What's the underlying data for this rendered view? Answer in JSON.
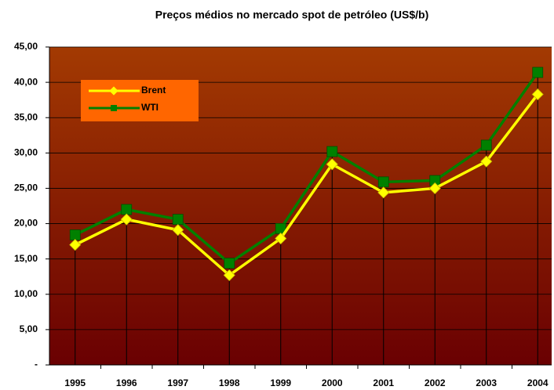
{
  "chart_data": {
    "type": "line",
    "title": "Preços médios no mercado spot de petróleo (US$/b)",
    "categories": [
      "1995",
      "1996",
      "1997",
      "1998",
      "1999",
      "2000",
      "2001",
      "2002",
      "2003",
      "2004"
    ],
    "series": [
      {
        "name": "Brent",
        "color": "#ffff00",
        "marker": "diamond",
        "values": [
          17.0,
          20.6,
          19.1,
          12.7,
          17.9,
          28.4,
          24.4,
          25.0,
          28.8,
          38.3
        ]
      },
      {
        "name": "WTI",
        "color": "#008000",
        "marker": "square",
        "values": [
          18.4,
          22.0,
          20.6,
          14.4,
          19.3,
          30.2,
          25.9,
          26.1,
          31.1,
          41.4
        ]
      }
    ],
    "ylim": [
      0,
      45
    ],
    "yticks": [
      {
        "value": 0,
        "label": "-"
      },
      {
        "value": 5,
        "label": "5,00"
      },
      {
        "value": 10,
        "label": "10,00"
      },
      {
        "value": 15,
        "label": "15,00"
      },
      {
        "value": 20,
        "label": "20,00"
      },
      {
        "value": 25,
        "label": "25,00"
      },
      {
        "value": 30,
        "label": "30,00"
      },
      {
        "value": 35,
        "label": "35,00"
      },
      {
        "value": 40,
        "label": "40,00"
      },
      {
        "value": 45,
        "label": "45,00"
      }
    ],
    "grid": true,
    "drop_lines": true,
    "legend": "upper left"
  }
}
